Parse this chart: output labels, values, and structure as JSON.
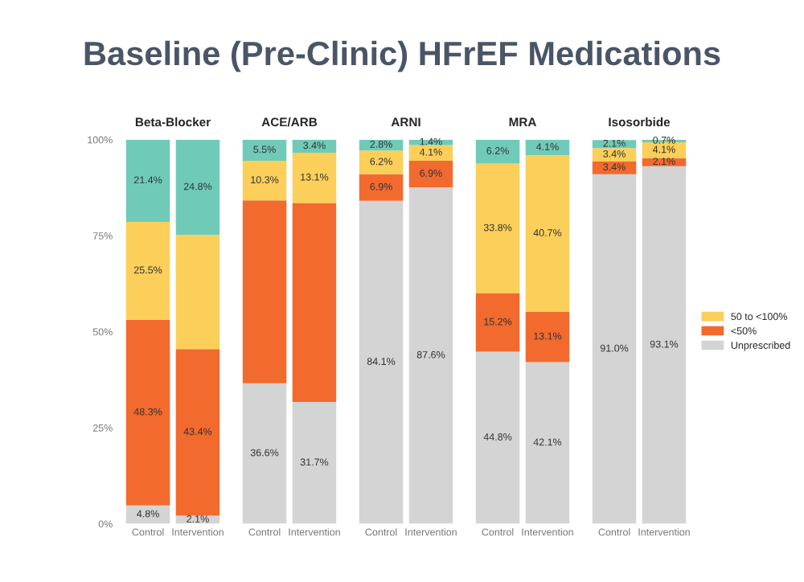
{
  "chart_data": [
    {
      "type": "bar",
      "title": "Baseline (Pre-Clinic) HFrEF Medications",
      "subtitle": "Beta-Blocker",
      "stacked": true,
      "categories": [
        "Control",
        "Intervention"
      ],
      "ylim": [
        0,
        100
      ],
      "yticks": [
        {
          "value": 0,
          "label": "0%"
        },
        {
          "value": 25,
          "label": "25%"
        },
        {
          "value": 50,
          "label": "50%"
        },
        {
          "value": 75,
          "label": "75%"
        },
        {
          "value": 100,
          "label": "100%"
        }
      ],
      "series": [
        {
          "color": "#d4d4d4",
          "values": [
            4.8,
            2.1
          ],
          "value_labels": [
            "4.8%",
            "2.1%"
          ]
        },
        {
          "color": "#f26a2e",
          "values": [
            48.3,
            43.4
          ],
          "value_labels": [
            "48.3%",
            "43.4%"
          ]
        },
        {
          "color": "#fbcf5a",
          "values": [
            25.5,
            29.7
          ],
          "value_labels": [
            "25.5%",
            null
          ]
        },
        {
          "color": "#6fcbb8",
          "values": [
            21.4,
            24.8
          ],
          "value_labels": [
            "21.4%",
            "24.8%"
          ]
        }
      ]
    },
    {
      "type": "bar",
      "subtitle": "ACE/ARB",
      "stacked": true,
      "categories": [
        "Control",
        "Intervention"
      ],
      "ylim": [
        0,
        100
      ],
      "tick_labels": "x",
      "series": [
        {
          "color": "#d4d4d4",
          "values": [
            36.6,
            31.7
          ],
          "value_labels": [
            "36.6%",
            "31.7%"
          ]
        },
        {
          "color": "#f26a2e",
          "values": [
            47.6,
            51.8
          ],
          "value_labels": [
            null,
            null
          ]
        },
        {
          "color": "#fbcf5a",
          "values": [
            10.3,
            13.1
          ],
          "value_labels": [
            "10.3%",
            "13.1%"
          ]
        },
        {
          "color": "#6fcbb8",
          "values": [
            5.5,
            3.4
          ],
          "value_labels": [
            "5.5%",
            "3.4%"
          ]
        }
      ]
    },
    {
      "type": "bar",
      "subtitle": "ARNI",
      "stacked": true,
      "categories": [
        "Control",
        "Intervention"
      ],
      "ylim": [
        0,
        100
      ],
      "tick_labels": "x",
      "series": [
        {
          "color": "#d4d4d4",
          "values": [
            84.1,
            87.6
          ],
          "value_labels": [
            "84.1%",
            "87.6%"
          ]
        },
        {
          "color": "#f26a2e",
          "values": [
            6.9,
            6.9
          ],
          "value_labels": [
            "6.9%",
            "6.9%"
          ]
        },
        {
          "color": "#fbcf5a",
          "values": [
            6.2,
            4.1
          ],
          "value_labels": [
            "6.2%",
            "4.1%"
          ]
        },
        {
          "color": "#6fcbb8",
          "values": [
            2.8,
            1.4
          ],
          "value_labels": [
            "2.8%",
            "1.4%"
          ]
        }
      ]
    },
    {
      "type": "bar",
      "subtitle": "MRA",
      "stacked": true,
      "categories": [
        "Control",
        "Intervention"
      ],
      "ylim": [
        0,
        100
      ],
      "tick_labels": "x",
      "series": [
        {
          "color": "#d4d4d4",
          "values": [
            44.8,
            42.1
          ],
          "value_labels": [
            "44.8%",
            "42.1%"
          ]
        },
        {
          "color": "#f26a2e",
          "values": [
            15.2,
            13.1
          ],
          "value_labels": [
            "15.2%",
            "13.1%"
          ]
        },
        {
          "color": "#fbcf5a",
          "values": [
            33.8,
            40.7
          ],
          "value_labels": [
            "33.8%",
            "40.7%"
          ]
        },
        {
          "color": "#6fcbb8",
          "values": [
            6.2,
            4.1
          ],
          "value_labels": [
            "6.2%",
            "4.1%"
          ]
        }
      ]
    },
    {
      "type": "bar",
      "subtitle": "Isosorbide",
      "stacked": true,
      "categories": [
        "Control",
        "Intervention"
      ],
      "ylim": [
        0,
        100
      ],
      "tick_labels": "x",
      "legend": "right",
      "series": [
        {
          "name": "Unprescribed",
          "color": "#d4d4d4",
          "values": [
            91.0,
            93.1
          ],
          "value_labels": [
            "91.0%",
            "93.1%"
          ]
        },
        {
          "name": "<50%",
          "color": "#f26a2e",
          "values": [
            3.4,
            2.1
          ],
          "value_labels": [
            "3.4%",
            "2.1%"
          ]
        },
        {
          "name": "50 to <100%",
          "color": "#fbcf5a",
          "values": [
            3.4,
            4.1
          ],
          "value_labels": [
            "3.4%",
            "4.1%"
          ]
        },
        {
          "color": "#6fcbb8",
          "values": [
            2.1,
            0.7
          ],
          "value_labels": [
            "2.1%",
            "0.7%"
          ]
        }
      ]
    }
  ]
}
